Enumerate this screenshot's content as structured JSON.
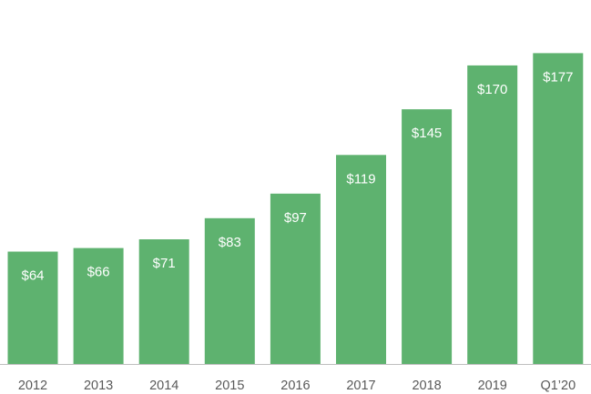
{
  "chart_data": {
    "type": "bar",
    "title": "",
    "xlabel": "",
    "ylabel": "",
    "categories": [
      "2012",
      "2013",
      "2014",
      "2015",
      "2016",
      "2017",
      "2018",
      "2019",
      "Q1’20"
    ],
    "values": [
      64,
      66,
      71,
      83,
      97,
      119,
      145,
      170,
      177
    ],
    "data_labels": [
      "$64",
      "$66",
      "$71",
      "$83",
      "$97",
      "$119",
      "$145",
      "$170",
      "$177"
    ],
    "ylim": [
      0,
      186
    ],
    "grid": false,
    "legend": "none",
    "bar_color": "#5eb26f",
    "axis_color": "#bfbfbf",
    "tick_label_color": "#595959"
  }
}
